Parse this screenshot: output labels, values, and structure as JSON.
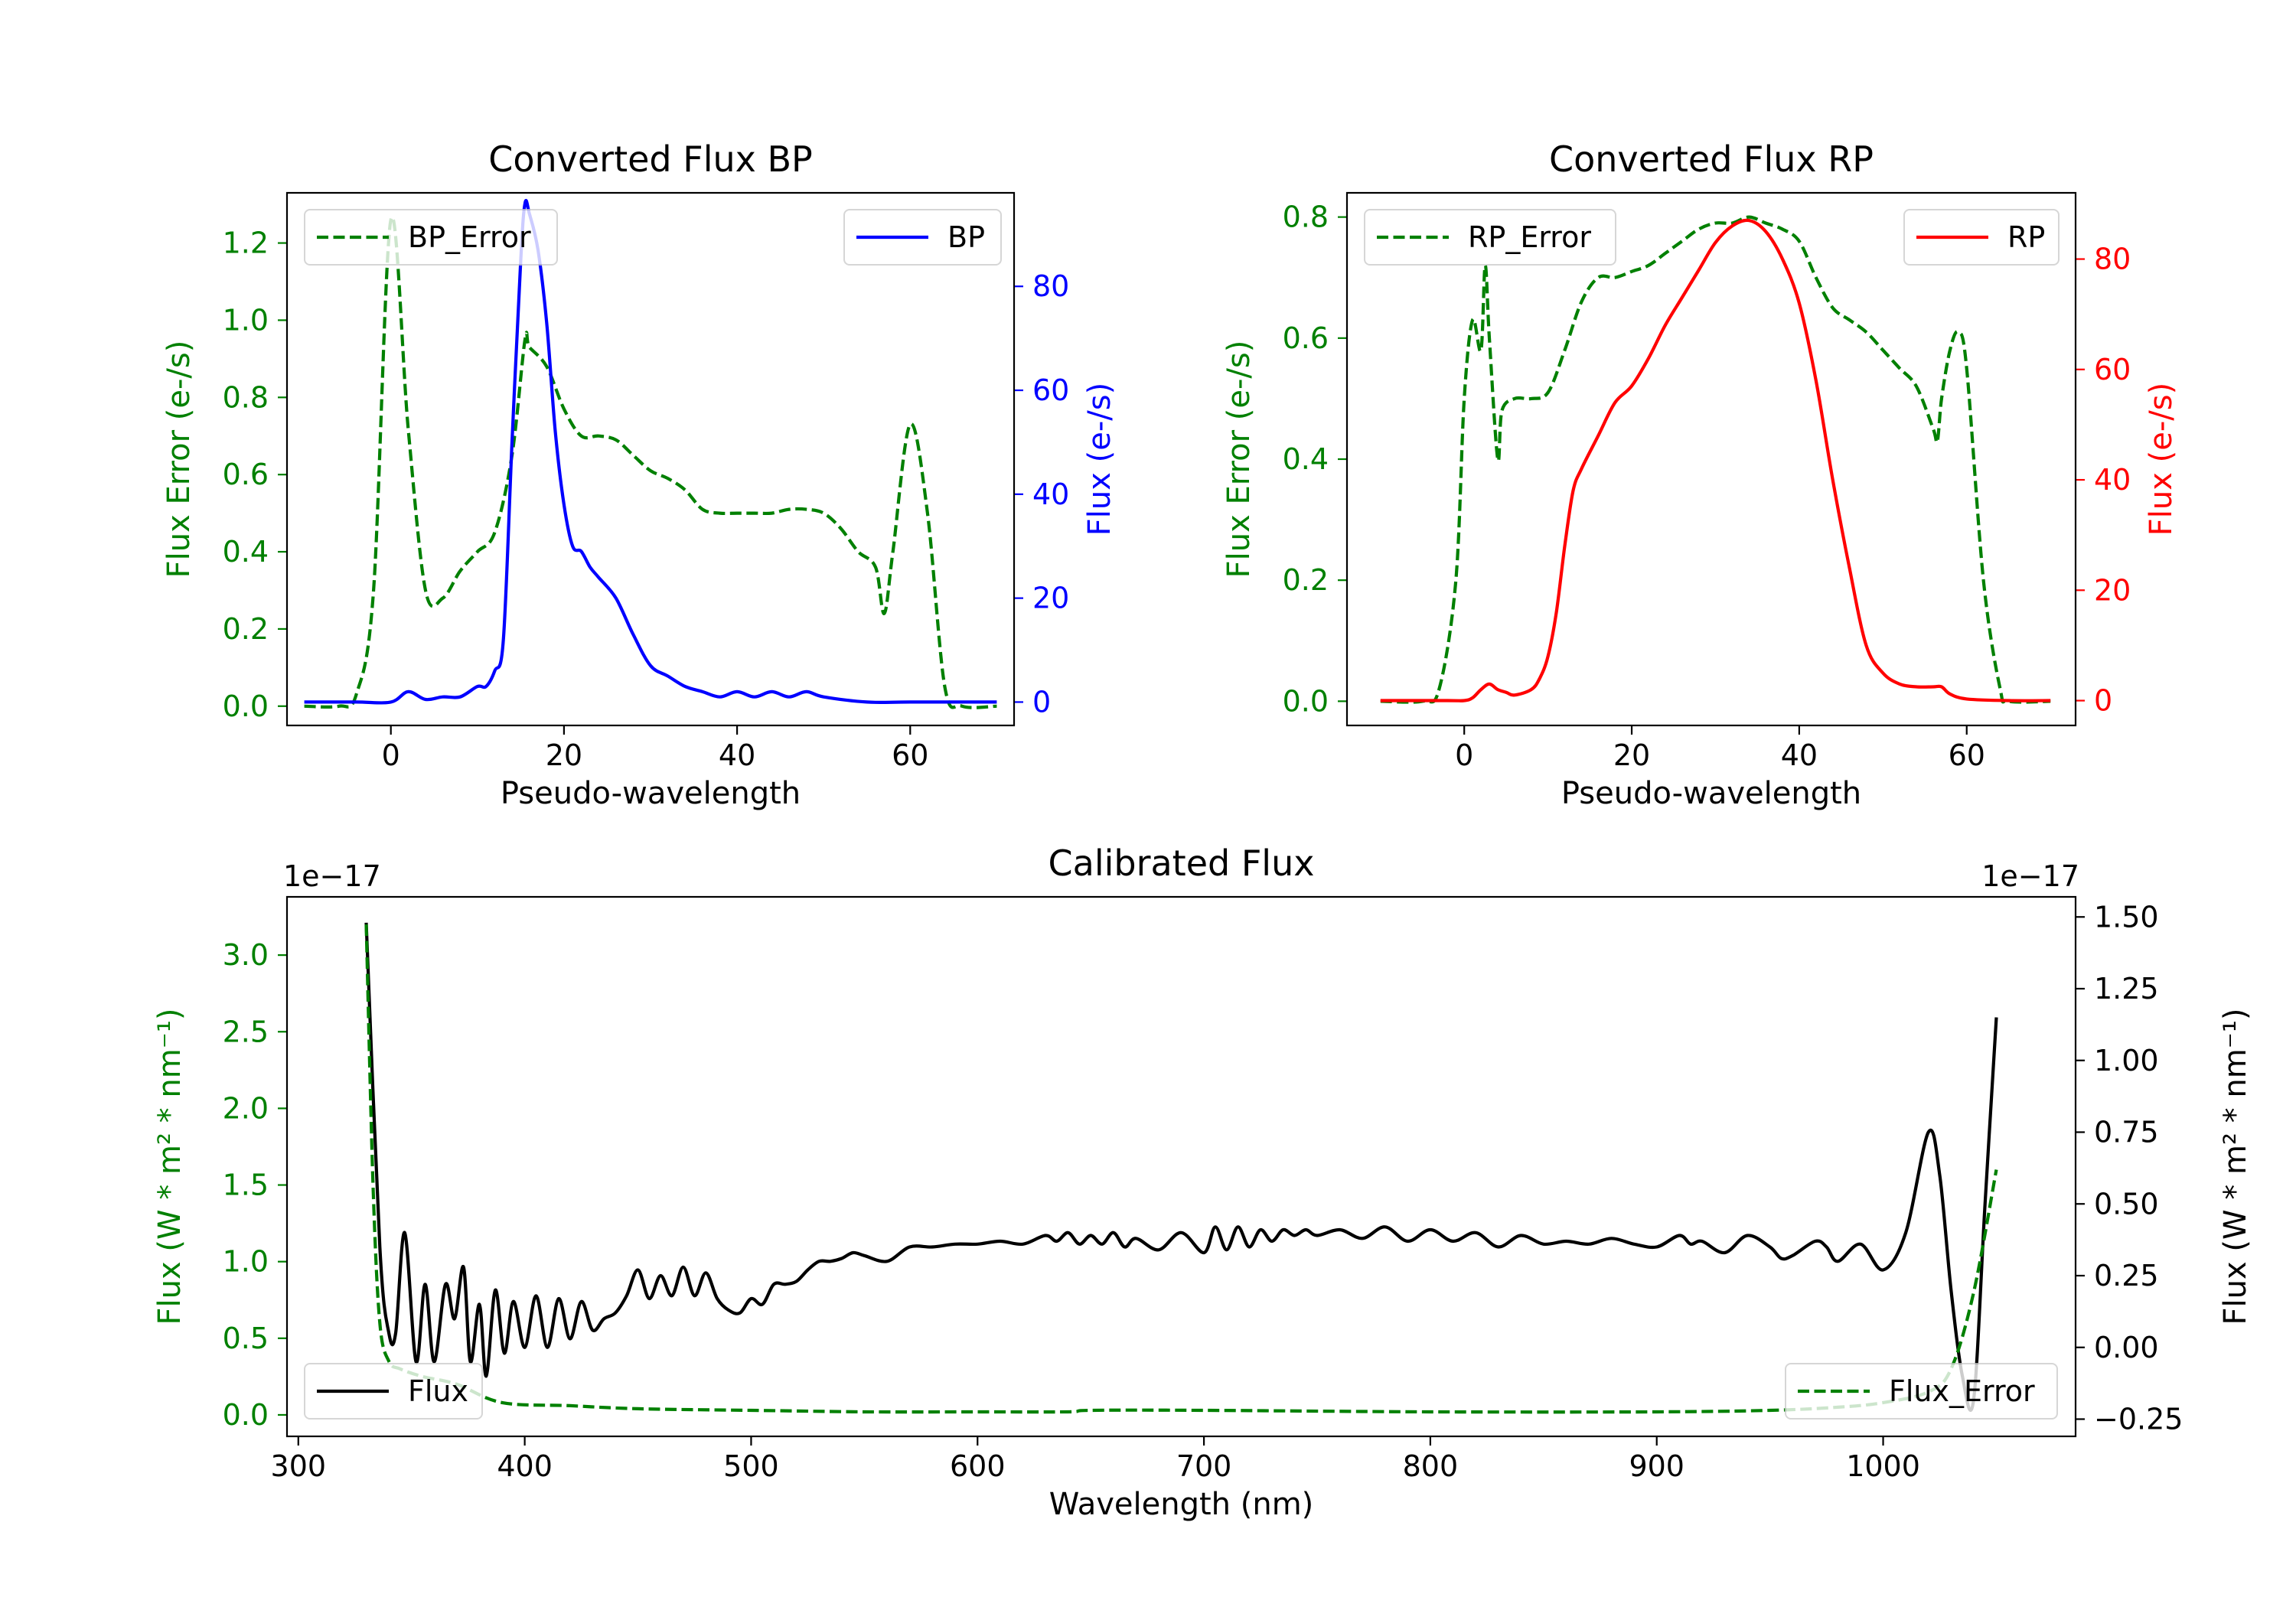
{
  "chart_data": [
    {
      "id": "bp",
      "type": "line",
      "title": "Converted Flux BP",
      "xlabel": "Pseudo-wavelength",
      "xlim": [
        -12,
        72
      ],
      "xticks": [
        0,
        20,
        40,
        60
      ],
      "left_axis": {
        "label": "Flux Error (e-/s)",
        "color": "#008000",
        "ylim": [
          -0.05,
          1.33
        ],
        "ticks": [
          0.0,
          0.2,
          0.4,
          0.6,
          0.8,
          1.0,
          1.2
        ],
        "tick_labels": [
          "0.0",
          "0.2",
          "0.4",
          "0.6",
          "0.8",
          "1.0",
          "1.2"
        ]
      },
      "right_axis": {
        "label": "Flux (e-/s)",
        "color": "#0000ff",
        "ylim": [
          -4.5,
          98
        ],
        "ticks": [
          0,
          20,
          40,
          60,
          80
        ],
        "tick_labels": [
          "0",
          "20",
          "40",
          "60",
          "80"
        ]
      },
      "series": [
        {
          "name": "BP_Error",
          "axis": "left",
          "color": "#008000",
          "dash": true,
          "legend": "upper left",
          "x": [
            -10,
            -6,
            -4,
            -2,
            0,
            2,
            4,
            6,
            8,
            10,
            12,
            14,
            15.5,
            16,
            18,
            20,
            22,
            24,
            26,
            28,
            30,
            32,
            34,
            36,
            38,
            40,
            42,
            44,
            46,
            48,
            50,
            52,
            54,
            56,
            57,
            58,
            60,
            62,
            64,
            66,
            70
          ],
          "values": [
            0.0,
            0.0,
            0.03,
            0.3,
            1.26,
            0.72,
            0.3,
            0.28,
            0.35,
            0.4,
            0.45,
            0.65,
            0.95,
            0.93,
            0.88,
            0.77,
            0.7,
            0.7,
            0.69,
            0.65,
            0.61,
            0.59,
            0.56,
            0.51,
            0.5,
            0.5,
            0.5,
            0.5,
            0.51,
            0.51,
            0.5,
            0.46,
            0.4,
            0.36,
            0.24,
            0.4,
            0.73,
            0.5,
            0.05,
            0.0,
            0.0
          ]
        },
        {
          "name": "BP",
          "axis": "right",
          "color": "#0000ff",
          "dash": false,
          "legend": "upper right",
          "x": [
            -10,
            -4,
            0,
            2,
            4,
            6,
            8,
            10,
            11,
            12,
            13,
            14,
            15,
            15.5,
            16,
            17,
            18,
            19,
            20,
            21,
            22,
            23,
            24,
            26,
            28,
            30,
            32,
            34,
            36,
            38,
            40,
            42,
            44,
            46,
            48,
            50,
            55,
            60,
            70
          ],
          "values": [
            0,
            0,
            0,
            2,
            0.5,
            1,
            1,
            3,
            3,
            6,
            12,
            50,
            85,
            96,
            94,
            87,
            73,
            52,
            38,
            30,
            29,
            26,
            24,
            20,
            13,
            7,
            5,
            3,
            2,
            1,
            2,
            1,
            2,
            1,
            2,
            1,
            0,
            0,
            0
          ]
        }
      ]
    },
    {
      "id": "rp",
      "type": "line",
      "title": "Converted Flux RP",
      "xlabel": "Pseudo-wavelength",
      "xlim": [
        -14,
        73
      ],
      "xticks": [
        0,
        20,
        40,
        60
      ],
      "left_axis": {
        "label": "Flux Error (e-/s)",
        "color": "#008000",
        "ylim": [
          -0.04,
          0.84
        ],
        "ticks": [
          0.0,
          0.2,
          0.4,
          0.6,
          0.8
        ],
        "tick_labels": [
          "0.0",
          "0.2",
          "0.4",
          "0.6",
          "0.8"
        ]
      },
      "right_axis": {
        "label": "Flux (e-/s)",
        "color": "#ff0000",
        "ylim": [
          -4.5,
          92
        ],
        "ticks": [
          0,
          20,
          40,
          60,
          80
        ],
        "tick_labels": [
          "0",
          "20",
          "40",
          "60",
          "80"
        ]
      },
      "series": [
        {
          "name": "RP_Error",
          "axis": "left",
          "color": "#008000",
          "dash": true,
          "legend": "upper left",
          "x": [
            -10,
            -5,
            -3,
            -1,
            0,
            1,
            2,
            2.5,
            3,
            4,
            4.5,
            6,
            8,
            10,
            12,
            14,
            16,
            18,
            20,
            22,
            24,
            26,
            28,
            30,
            32,
            34,
            36,
            38,
            40,
            42,
            44,
            46,
            48,
            50,
            52,
            54,
            56,
            56.5,
            57,
            58,
            59,
            60,
            62,
            64,
            65,
            70
          ],
          "values": [
            0.0,
            0.0,
            0.02,
            0.2,
            0.5,
            0.63,
            0.58,
            0.72,
            0.6,
            0.4,
            0.48,
            0.5,
            0.5,
            0.51,
            0.58,
            0.66,
            0.7,
            0.7,
            0.71,
            0.72,
            0.74,
            0.76,
            0.78,
            0.79,
            0.79,
            0.8,
            0.79,
            0.78,
            0.76,
            0.7,
            0.65,
            0.63,
            0.61,
            0.58,
            0.55,
            0.52,
            0.45,
            0.43,
            0.5,
            0.58,
            0.61,
            0.55,
            0.2,
            0.02,
            0.0,
            0.0
          ]
        },
        {
          "name": "RP",
          "axis": "right",
          "color": "#ff0000",
          "dash": false,
          "legend": "upper right",
          "x": [
            -10,
            -2,
            0,
            1,
            2,
            3,
            4,
            5,
            6,
            8,
            9,
            10,
            11,
            12,
            13,
            14,
            16,
            18,
            20,
            22,
            24,
            26,
            28,
            30,
            32,
            34,
            36,
            38,
            40,
            42,
            44,
            46,
            48,
            50,
            52,
            54,
            56,
            57,
            58,
            60,
            65,
            70
          ],
          "values": [
            0,
            0,
            0,
            0.5,
            2,
            3,
            2,
            1.5,
            1,
            2,
            4,
            8,
            16,
            28,
            38,
            42,
            48,
            54,
            57,
            62,
            68,
            73,
            78,
            83,
            86,
            87,
            85,
            80,
            72,
            58,
            40,
            24,
            10,
            5,
            3,
            2.5,
            2.5,
            2.5,
            1.2,
            0.3,
            0,
            0
          ]
        }
      ]
    },
    {
      "id": "cal",
      "type": "line",
      "title": "Calibrated Flux",
      "xlabel": "Wavelength (nm)",
      "xlim": [
        295,
        1085
      ],
      "xticks": [
        300,
        400,
        500,
        600,
        700,
        800,
        900,
        1000
      ],
      "left_axis": {
        "label": "Flux (W * m² * nm⁻¹)",
        "color": "#008000",
        "multiplier": "1e−17",
        "ylim": [
          -0.14,
          3.38
        ],
        "ticks": [
          0.0,
          0.5,
          1.0,
          1.5,
          2.0,
          2.5,
          3.0
        ],
        "tick_labels": [
          "0.0",
          "0.5",
          "1.0",
          "1.5",
          "2.0",
          "2.5",
          "3.0"
        ]
      },
      "right_axis": {
        "label": "Flux (W * m² * nm⁻¹)",
        "color": "#000000",
        "multiplier": "1e−17",
        "ylim": [
          -0.31,
          1.57
        ],
        "ticks": [
          -0.25,
          0.0,
          0.25,
          0.5,
          0.75,
          1.0,
          1.25,
          1.5
        ],
        "tick_labels": [
          "−0.25",
          "0.00",
          "0.25",
          "0.50",
          "0.75",
          "1.00",
          "1.25",
          "1.50"
        ]
      },
      "series": [
        {
          "name": "Flux",
          "axis": "right",
          "color": "#000000",
          "dash": false,
          "legend": "lower left",
          "x": [
            330,
            336,
            340,
            343,
            347,
            352,
            356,
            360,
            365,
            369,
            373,
            376,
            380,
            383,
            387,
            391,
            395,
            400,
            405,
            410,
            415,
            420,
            425,
            430,
            435,
            440,
            445,
            450,
            455,
            460,
            465,
            470,
            475,
            480,
            485,
            490,
            495,
            500,
            505,
            510,
            515,
            520,
            525,
            530,
            535,
            540,
            545,
            550,
            560,
            570,
            580,
            590,
            600,
            610,
            620,
            630,
            635,
            640,
            645,
            650,
            655,
            660,
            665,
            670,
            680,
            690,
            700,
            705,
            710,
            715,
            720,
            725,
            730,
            735,
            740,
            745,
            750,
            760,
            770,
            780,
            790,
            800,
            810,
            820,
            830,
            840,
            850,
            860,
            870,
            880,
            890,
            900,
            910,
            915,
            920,
            930,
            940,
            950,
            955,
            960,
            970,
            975,
            980,
            990,
            1000,
            1010,
            1020,
            1025,
            1030,
            1035,
            1040,
            1045,
            1050
          ],
          "values": [
            1.48,
            0.35,
            0.05,
            0.05,
            0.4,
            -0.05,
            0.22,
            -0.05,
            0.22,
            0.1,
            0.28,
            -0.05,
            0.15,
            -0.1,
            0.2,
            -0.02,
            0.16,
            0.0,
            0.18,
            0.0,
            0.17,
            0.03,
            0.16,
            0.06,
            0.1,
            0.12,
            0.18,
            0.27,
            0.17,
            0.25,
            0.18,
            0.28,
            0.18,
            0.26,
            0.17,
            0.13,
            0.12,
            0.17,
            0.15,
            0.22,
            0.22,
            0.23,
            0.27,
            0.3,
            0.3,
            0.31,
            0.33,
            0.32,
            0.3,
            0.35,
            0.35,
            0.36,
            0.36,
            0.37,
            0.36,
            0.39,
            0.37,
            0.4,
            0.36,
            0.39,
            0.36,
            0.4,
            0.35,
            0.38,
            0.34,
            0.4,
            0.33,
            0.42,
            0.34,
            0.42,
            0.35,
            0.41,
            0.37,
            0.41,
            0.39,
            0.41,
            0.39,
            0.41,
            0.38,
            0.42,
            0.37,
            0.41,
            0.37,
            0.4,
            0.35,
            0.39,
            0.36,
            0.37,
            0.36,
            0.38,
            0.36,
            0.35,
            0.39,
            0.36,
            0.37,
            0.33,
            0.39,
            0.35,
            0.31,
            0.32,
            0.37,
            0.35,
            0.3,
            0.36,
            0.27,
            0.4,
            0.75,
            0.6,
            0.2,
            -0.1,
            -0.18,
            0.5,
            1.15
          ]
        },
        {
          "name": "Flux_Error",
          "axis": "left",
          "color": "#008000",
          "dash": true,
          "legend": "lower right",
          "x": [
            330,
            333,
            336,
            340,
            345,
            355,
            370,
            390,
            420,
            450,
            500,
            550,
            600,
            640,
            650,
            700,
            800,
            900,
            950,
            980,
            1000,
            1020,
            1030,
            1040,
            1050
          ],
          "values": [
            3.2,
            1.5,
            0.6,
            0.35,
            0.3,
            0.25,
            0.2,
            0.08,
            0.06,
            0.04,
            0.03,
            0.02,
            0.02,
            0.02,
            0.03,
            0.03,
            0.02,
            0.02,
            0.03,
            0.05,
            0.08,
            0.15,
            0.3,
            0.8,
            1.6
          ]
        }
      ]
    }
  ]
}
